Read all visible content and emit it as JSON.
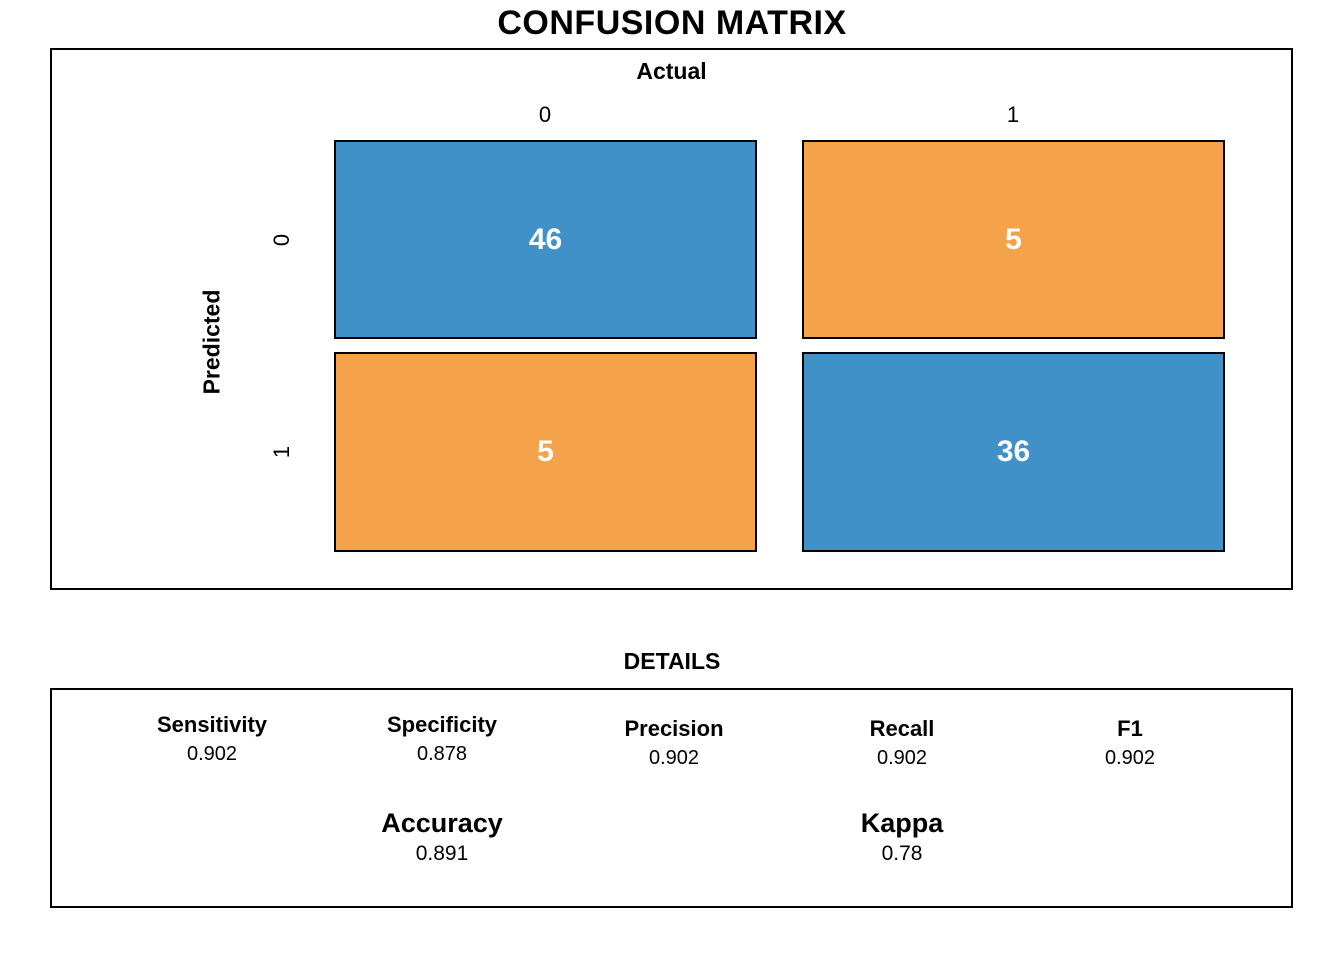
{
  "title": "CONFUSION MATRIX",
  "chart_data": {
    "type": "heatmap",
    "title": "CONFUSION MATRIX",
    "x_axis_label": "Actual",
    "y_axis_label": "Predicted",
    "col_labels": [
      "0",
      "1"
    ],
    "row_labels": [
      "0",
      "1"
    ],
    "matrix": [
      [
        46,
        5
      ],
      [
        5,
        36
      ]
    ],
    "cells": [
      {
        "row": "0",
        "col": "0",
        "value": "46",
        "color": "#4191c9"
      },
      {
        "row": "0",
        "col": "1",
        "value": "5",
        "color": "#f5a34b"
      },
      {
        "row": "1",
        "col": "0",
        "value": "5",
        "color": "#f5a34b"
      },
      {
        "row": "1",
        "col": "1",
        "value": "36",
        "color": "#4191c9"
      }
    ],
    "colors": {
      "diagonal": "#4191c9",
      "off_diagonal": "#f5a34b",
      "cell_text": "#ffffff",
      "border": "#000000"
    },
    "legend_position": "none",
    "details": {
      "title": "DETAILS",
      "metrics": [
        {
          "label": "Sensitivity",
          "value": "0.902"
        },
        {
          "label": "Specificity",
          "value": "0.878"
        },
        {
          "label": "Precision",
          "value": "0.902"
        },
        {
          "label": "Recall",
          "value": "0.902"
        },
        {
          "label": "F1",
          "value": "0.902"
        }
      ],
      "summary_metrics": [
        {
          "label": "Accuracy",
          "value": "0.891"
        },
        {
          "label": "Kappa",
          "value": "0.78"
        }
      ]
    }
  }
}
